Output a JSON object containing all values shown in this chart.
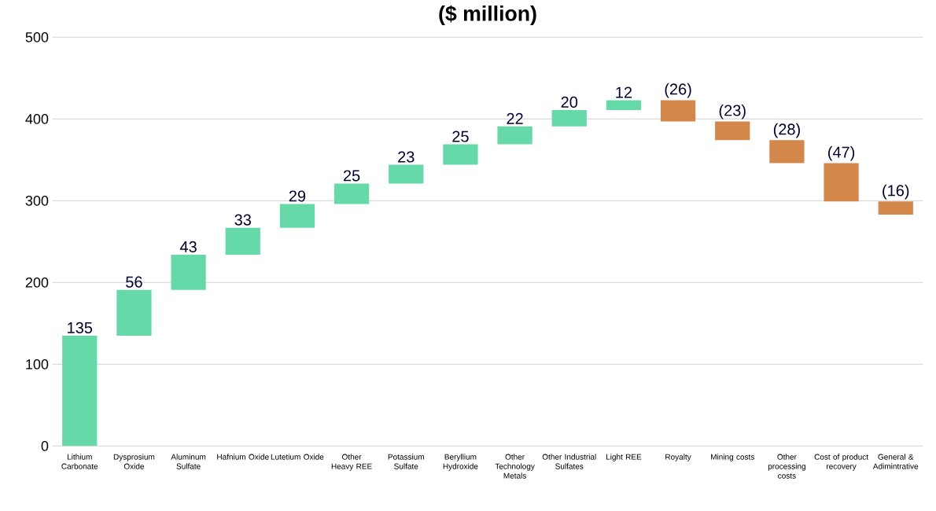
{
  "chart_data": {
    "type": "bar",
    "title": "($ million)",
    "categories": [
      "Lithium Carbonate",
      "Dysprosium Oxide",
      "Aluminum Sulfate",
      "Hafnium Oxide",
      "Lutetium Oxide",
      "Other Heavy REE",
      "Potassium Sulfate",
      "Beryllium Hydroxide",
      "Other Technology Metals",
      "Other Industrial Sulfates",
      "Light REE",
      "Royalty",
      "Mining costs",
      "Other processing costs",
      "Cost of product recovery",
      "General & Adimintrative"
    ],
    "values": [
      135,
      56,
      43,
      33,
      29,
      25,
      23,
      25,
      22,
      20,
      12,
      -26,
      -23,
      -28,
      -47,
      -16
    ],
    "base": [
      0,
      135,
      191,
      234,
      267,
      296,
      321,
      344,
      369,
      391,
      411,
      423,
      397,
      374,
      346,
      299
    ],
    "value_labels": [
      "135",
      "56",
      "43",
      "33",
      "29",
      "25",
      "23",
      "25",
      "22",
      "20",
      "12",
      "(26)",
      "(23)",
      "(28)",
      "(47)",
      "(16)"
    ],
    "colors": [
      "#66d9a8",
      "#66d9a8",
      "#66d9a8",
      "#66d9a8",
      "#66d9a8",
      "#66d9a8",
      "#66d9a8",
      "#66d9a8",
      "#66d9a8",
      "#66d9a8",
      "#66d9a8",
      "#d4874b",
      "#d4874b",
      "#d4874b",
      "#d4874b",
      "#d4874b"
    ],
    "ylim": [
      0,
      500
    ],
    "yticks": [
      0,
      100,
      200,
      300,
      400,
      500
    ],
    "grid": "y"
  }
}
